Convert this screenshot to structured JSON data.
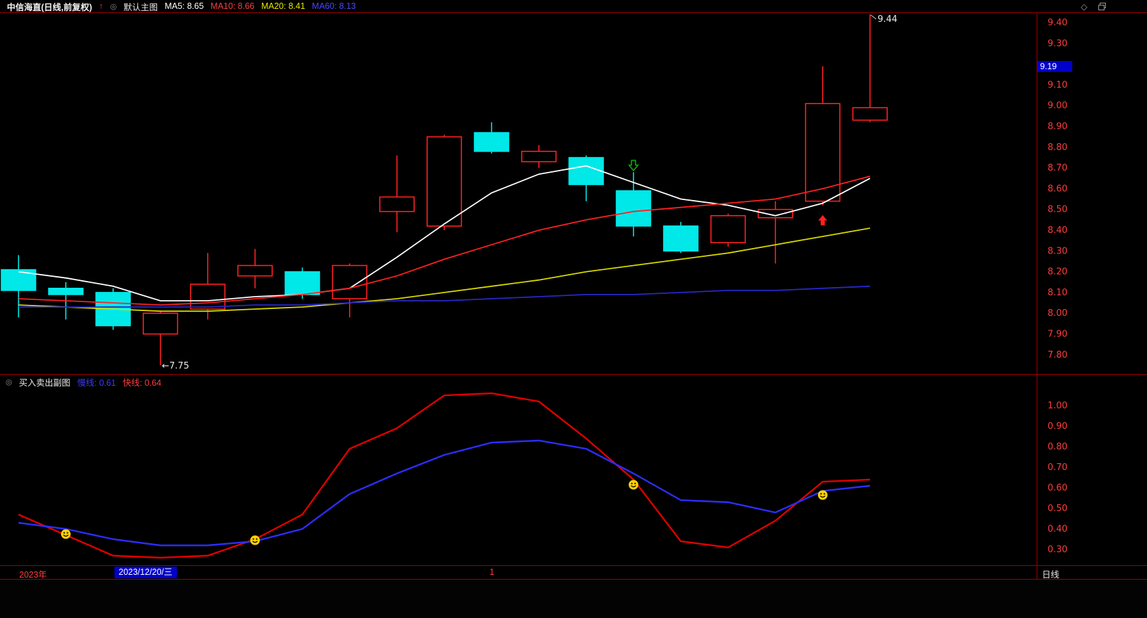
{
  "palette": {
    "background": "#000000",
    "grid": "#9c0000",
    "axis_text": "#ff3c3c",
    "up": "#ff2020",
    "down": "#00e8e8",
    "smiley": "#ffd200",
    "sell_arrow": "#00c800",
    "buy_arrow": "#ff2020",
    "price_tag_bg": "#0000cc",
    "date_tag_bg": "#0000cc"
  },
  "icons": {
    "trend_up": "↑",
    "indicator_ring": "◎",
    "diamond": "◇"
  },
  "topbar": {
    "title": "中信海直(日线,前复权)",
    "layout_label": "默认主图",
    "ma_labels": [
      {
        "name": "MA5",
        "text": "MA5: 8.65",
        "color": "#ffffff"
      },
      {
        "name": "MA10",
        "text": "MA10: 8.66",
        "color": "#ff3c3c"
      },
      {
        "name": "MA20",
        "text": "MA20: 8.41",
        "color": "#e8e800"
      },
      {
        "name": "MA60",
        "text": "MA60: 8.13",
        "color": "#4848ff"
      }
    ]
  },
  "price_axis": {
    "current_price": "9.19"
  },
  "sub_panel": {
    "title": "买入卖出副图",
    "slow_label": "慢线: 0.61",
    "fast_label": "快线: 0.64"
  },
  "timeline": {
    "year": "2023年",
    "date": "2023/12/20/三",
    "mid_marker": "1",
    "period": "日线"
  },
  "chart_data": {
    "type": "candlestick",
    "title": "中信海直 日线(前复权)",
    "main": {
      "ylim": [
        7.7,
        9.45
      ],
      "axis_ticks": [
        "9.40",
        "9.30",
        "9.20",
        "9.10",
        "9.00",
        "8.90",
        "8.80",
        "8.70",
        "8.60",
        "8.50",
        "8.40",
        "8.30",
        "8.20",
        "8.10",
        "8.00",
        "7.90",
        "7.80"
      ],
      "hidden_tick": "9.20",
      "current_price": 9.19,
      "candles": [
        {
          "o": 8.21,
          "h": 8.28,
          "l": 7.98,
          "c": 8.11
        },
        {
          "o": 8.12,
          "h": 8.15,
          "l": 7.97,
          "c": 8.09
        },
        {
          "o": 8.1,
          "h": 8.12,
          "l": 7.92,
          "c": 7.94
        },
        {
          "o": 7.9,
          "h": 8.01,
          "l": 7.75,
          "c": 8.0
        },
        {
          "o": 8.02,
          "h": 8.29,
          "l": 7.97,
          "c": 8.14
        },
        {
          "o": 8.18,
          "h": 8.31,
          "l": 8.12,
          "c": 8.23
        },
        {
          "o": 8.2,
          "h": 8.22,
          "l": 8.07,
          "c": 8.09
        },
        {
          "o": 8.07,
          "h": 8.24,
          "l": 7.98,
          "c": 8.23
        },
        {
          "o": 8.49,
          "h": 8.76,
          "l": 8.39,
          "c": 8.56
        },
        {
          "o": 8.42,
          "h": 8.86,
          "l": 8.4,
          "c": 8.85
        },
        {
          "o": 8.87,
          "h": 8.92,
          "l": 8.77,
          "c": 8.78
        },
        {
          "o": 8.73,
          "h": 8.81,
          "l": 8.7,
          "c": 8.78
        },
        {
          "o": 8.75,
          "h": 8.76,
          "l": 8.54,
          "c": 8.62
        },
        {
          "o": 8.59,
          "h": 8.68,
          "l": 8.37,
          "c": 8.42
        },
        {
          "o": 8.42,
          "h": 8.44,
          "l": 8.29,
          "c": 8.3
        },
        {
          "o": 8.34,
          "h": 8.48,
          "l": 8.32,
          "c": 8.47
        },
        {
          "o": 8.46,
          "h": 8.54,
          "l": 8.24,
          "c": 8.5
        },
        {
          "o": 8.54,
          "h": 9.19,
          "l": 8.52,
          "c": 9.01
        },
        {
          "o": 8.93,
          "h": 9.44,
          "l": 8.92,
          "c": 8.99
        }
      ],
      "ma_series": [
        {
          "name": "MA5",
          "color": "#ffffff",
          "values": [
            8.2,
            8.17,
            8.13,
            8.06,
            8.06,
            8.08,
            8.09,
            8.12,
            8.27,
            8.43,
            8.58,
            8.67,
            8.71,
            8.63,
            8.55,
            8.52,
            8.47,
            8.53,
            8.65
          ]
        },
        {
          "name": "MA10",
          "color": "#ff2020",
          "values": [
            8.07,
            8.06,
            8.05,
            8.04,
            8.05,
            8.07,
            8.09,
            8.12,
            8.18,
            8.26,
            8.33,
            8.4,
            8.45,
            8.49,
            8.51,
            8.53,
            8.55,
            8.6,
            8.66
          ]
        },
        {
          "name": "MA20",
          "color": "#d8d800",
          "values": [
            8.04,
            8.03,
            8.02,
            8.01,
            8.01,
            8.02,
            8.03,
            8.05,
            8.07,
            8.1,
            8.13,
            8.16,
            8.2,
            8.23,
            8.26,
            8.29,
            8.33,
            8.37,
            8.41
          ]
        },
        {
          "name": "MA60",
          "color": "#2828c8",
          "values": [
            8.03,
            8.03,
            8.03,
            8.03,
            8.03,
            8.04,
            8.04,
            8.05,
            8.06,
            8.06,
            8.07,
            8.08,
            8.09,
            8.09,
            8.1,
            8.11,
            8.11,
            8.12,
            8.13
          ]
        }
      ],
      "annotations": [
        {
          "text": "9.44",
          "candle_index": 18,
          "price": 9.44,
          "side": "high"
        },
        {
          "text": "←7.75",
          "candle_index": 3,
          "price": 7.75,
          "side": "low"
        }
      ],
      "signals": [
        {
          "type": "sell",
          "candle_index": 13,
          "price": 8.71,
          "color": "#00c800"
        },
        {
          "type": "buy",
          "candle_index": 17,
          "price": 8.45,
          "color": "#ff2020"
        }
      ]
    },
    "sub": {
      "title": "买入卖出副图",
      "ylim": [
        0.22,
        1.1
      ],
      "axis_ticks": [
        "1.00",
        "0.90",
        "0.80",
        "0.70",
        "0.60",
        "0.50",
        "0.40",
        "0.30"
      ],
      "series": [
        {
          "name": "快线",
          "color": "#e00000",
          "values": [
            0.47,
            0.37,
            0.27,
            0.26,
            0.27,
            0.35,
            0.47,
            0.79,
            0.89,
            1.05,
            1.06,
            1.02,
            0.84,
            0.64,
            0.34,
            0.31,
            0.44,
            0.63,
            0.64
          ]
        },
        {
          "name": "慢线",
          "color": "#2d2dff",
          "values": [
            0.43,
            0.4,
            0.35,
            0.32,
            0.32,
            0.34,
            0.4,
            0.57,
            0.67,
            0.76,
            0.82,
            0.83,
            0.79,
            0.67,
            0.54,
            0.53,
            0.48,
            0.585,
            0.61
          ]
        }
      ],
      "smileys": [
        {
          "candle_index": 1,
          "value": 0.375
        },
        {
          "candle_index": 5,
          "value": 0.345
        },
        {
          "candle_index": 13,
          "value": 0.615
        },
        {
          "candle_index": 17,
          "value": 0.565
        }
      ]
    }
  }
}
